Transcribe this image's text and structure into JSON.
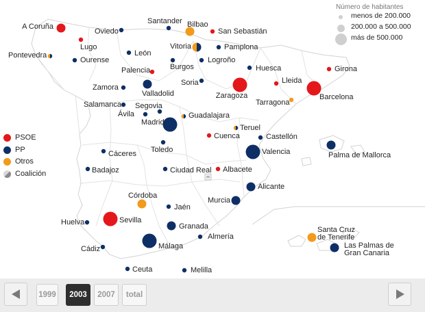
{
  "colors": {
    "psoe": "#e4171b",
    "pp": "#0e2f66",
    "otros": "#f29a1b",
    "coalicion_a": "#0e2f66",
    "coalicion_b": "#f29a1b",
    "land": "#ffffff",
    "border": "#d2d2d2"
  },
  "size_legend": {
    "title": "Número de habitantes",
    "items": [
      {
        "label": "menos de  200.000",
        "size": "small"
      },
      {
        "label": "200.000 a 500.000",
        "size": "medium"
      },
      {
        "label": "más de 500.000",
        "size": "large"
      }
    ]
  },
  "party_legend": [
    {
      "key": "psoe",
      "label": "PSOE"
    },
    {
      "key": "pp",
      "label": "PP"
    },
    {
      "key": "otros",
      "label": "Otros"
    },
    {
      "key": "coalicion",
      "label": "Coalición"
    }
  ],
  "cities": [
    {
      "name": "A Coruña",
      "party": "psoe",
      "size": "medium"
    },
    {
      "name": "Lugo",
      "party": "psoe",
      "size": "small"
    },
    {
      "name": "Oviedo",
      "party": "pp",
      "size": "small"
    },
    {
      "name": "Santander",
      "party": "pp",
      "size": "small"
    },
    {
      "name": "Bilbao",
      "party": "otros",
      "size": "medium"
    },
    {
      "name": "San Sebastián",
      "party": "psoe",
      "size": "small"
    },
    {
      "name": "Vitoria",
      "party": "coalicion",
      "size": "medium"
    },
    {
      "name": "Pamplona",
      "party": "pp",
      "size": "small"
    },
    {
      "name": "Pontevedra",
      "party": "coalicion",
      "size": "small"
    },
    {
      "name": "Ourense",
      "party": "pp",
      "size": "small"
    },
    {
      "name": "León",
      "party": "pp",
      "size": "small"
    },
    {
      "name": "Burgos",
      "party": "pp",
      "size": "small"
    },
    {
      "name": "Logroño",
      "party": "pp",
      "size": "small"
    },
    {
      "name": "Palencia",
      "party": "psoe",
      "size": "small"
    },
    {
      "name": "Huesca",
      "party": "pp",
      "size": "small"
    },
    {
      "name": "Girona",
      "party": "psoe",
      "size": "small"
    },
    {
      "name": "Lleida",
      "party": "psoe",
      "size": "small"
    },
    {
      "name": "Zaragoza",
      "party": "psoe",
      "size": "large"
    },
    {
      "name": "Barcelona",
      "party": "psoe",
      "size": "large"
    },
    {
      "name": "Soria",
      "party": "pp",
      "size": "small"
    },
    {
      "name": "Zamora",
      "party": "pp",
      "size": "small"
    },
    {
      "name": "Valladolid",
      "party": "pp",
      "size": "medium"
    },
    {
      "name": "Tarragona",
      "party": "otros",
      "size": "small"
    },
    {
      "name": "Salamanca",
      "party": "pp",
      "size": "small"
    },
    {
      "name": "Segovia",
      "party": "pp",
      "size": "small"
    },
    {
      "name": "Ávila",
      "party": "pp",
      "size": "small"
    },
    {
      "name": "Guadalajara",
      "party": "coalicion",
      "size": "small"
    },
    {
      "name": "Madrid",
      "party": "pp",
      "size": "large"
    },
    {
      "name": "Teruel",
      "party": "coalicion",
      "size": "small"
    },
    {
      "name": "Castellón",
      "party": "pp",
      "size": "small"
    },
    {
      "name": "Cuenca",
      "party": "psoe",
      "size": "small"
    },
    {
      "name": "Valencia",
      "party": "pp",
      "size": "large"
    },
    {
      "name": "Palma de Mallorca",
      "party": "pp",
      "size": "medium"
    },
    {
      "name": "Toledo",
      "party": "pp",
      "size": "small"
    },
    {
      "name": "Cáceres",
      "party": "pp",
      "size": "small"
    },
    {
      "name": "Badajoz",
      "party": "pp",
      "size": "small"
    },
    {
      "name": "Ciudad Real",
      "party": "pp",
      "size": "small"
    },
    {
      "name": "Albacete",
      "party": "psoe",
      "size": "small"
    },
    {
      "name": "Alicante",
      "party": "pp",
      "size": "medium"
    },
    {
      "name": "Murcia",
      "party": "pp",
      "size": "medium"
    },
    {
      "name": "Córdoba",
      "party": "otros",
      "size": "medium"
    },
    {
      "name": "Jaén",
      "party": "pp",
      "size": "small"
    },
    {
      "name": "Sevilla",
      "party": "psoe",
      "size": "large"
    },
    {
      "name": "Huelva",
      "party": "pp",
      "size": "small"
    },
    {
      "name": "Granada",
      "party": "pp",
      "size": "medium"
    },
    {
      "name": "Málaga",
      "party": "pp",
      "size": "large"
    },
    {
      "name": "Almería",
      "party": "pp",
      "size": "small"
    },
    {
      "name": "Cádiz",
      "party": "pp",
      "size": "small"
    },
    {
      "name": "Ceuta",
      "party": "pp",
      "size": "small"
    },
    {
      "name": "Melilla",
      "party": "pp",
      "size": "small"
    },
    {
      "name": "Santa Cruz de Tenerife",
      "party": "otros",
      "size": "medium"
    },
    {
      "name": "Las Palmas de Gran Canaria",
      "party": "pp",
      "size": "medium"
    }
  ],
  "nav": {
    "prev_icon": "arrow-left-icon",
    "next_icon": "arrow-right-icon",
    "years": [
      {
        "label": "1999",
        "active": false
      },
      {
        "label": "2003",
        "active": true
      },
      {
        "label": "2007",
        "active": false
      },
      {
        "label": "total",
        "active": false
      }
    ]
  },
  "scale_icon": "scale-icon"
}
